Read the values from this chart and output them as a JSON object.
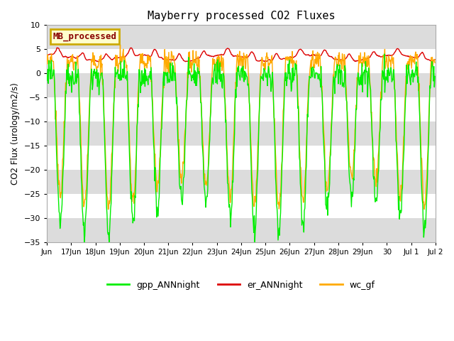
{
  "title": "Mayberry processed CO2 Fluxes",
  "ylabel": "CO2 Flux (urology/m2/s)",
  "ylim": [
    -35,
    10
  ],
  "yticks": [
    -35,
    -30,
    -25,
    -20,
    -15,
    -10,
    -5,
    0,
    5,
    10
  ],
  "background_color": "#ffffff",
  "plot_bg_color": "#ffffff",
  "band_color": "#dcdcdc",
  "gpp_color": "#00ee00",
  "er_color": "#dd0000",
  "wc_color": "#ffaa00",
  "legend_label": "MB_processed",
  "legend_bg": "#ffffcc",
  "legend_border": "#ccaa00",
  "line_width": 1.0,
  "xtick_labels": [
    "Jun",
    "17Jun",
    "18Jun",
    "19Jun",
    "20Jun",
    "21Jun",
    "22Jun",
    "23Jun",
    "24Jun",
    "25Jun",
    "26Jun",
    "27Jun",
    "28Jun",
    "29Jun",
    "30",
    "Jul 1",
    "Jul 2"
  ],
  "xtick_positions": [
    16,
    17,
    18,
    19,
    20,
    21,
    22,
    23,
    24,
    25,
    26,
    27,
    28,
    29,
    30,
    31,
    32
  ]
}
